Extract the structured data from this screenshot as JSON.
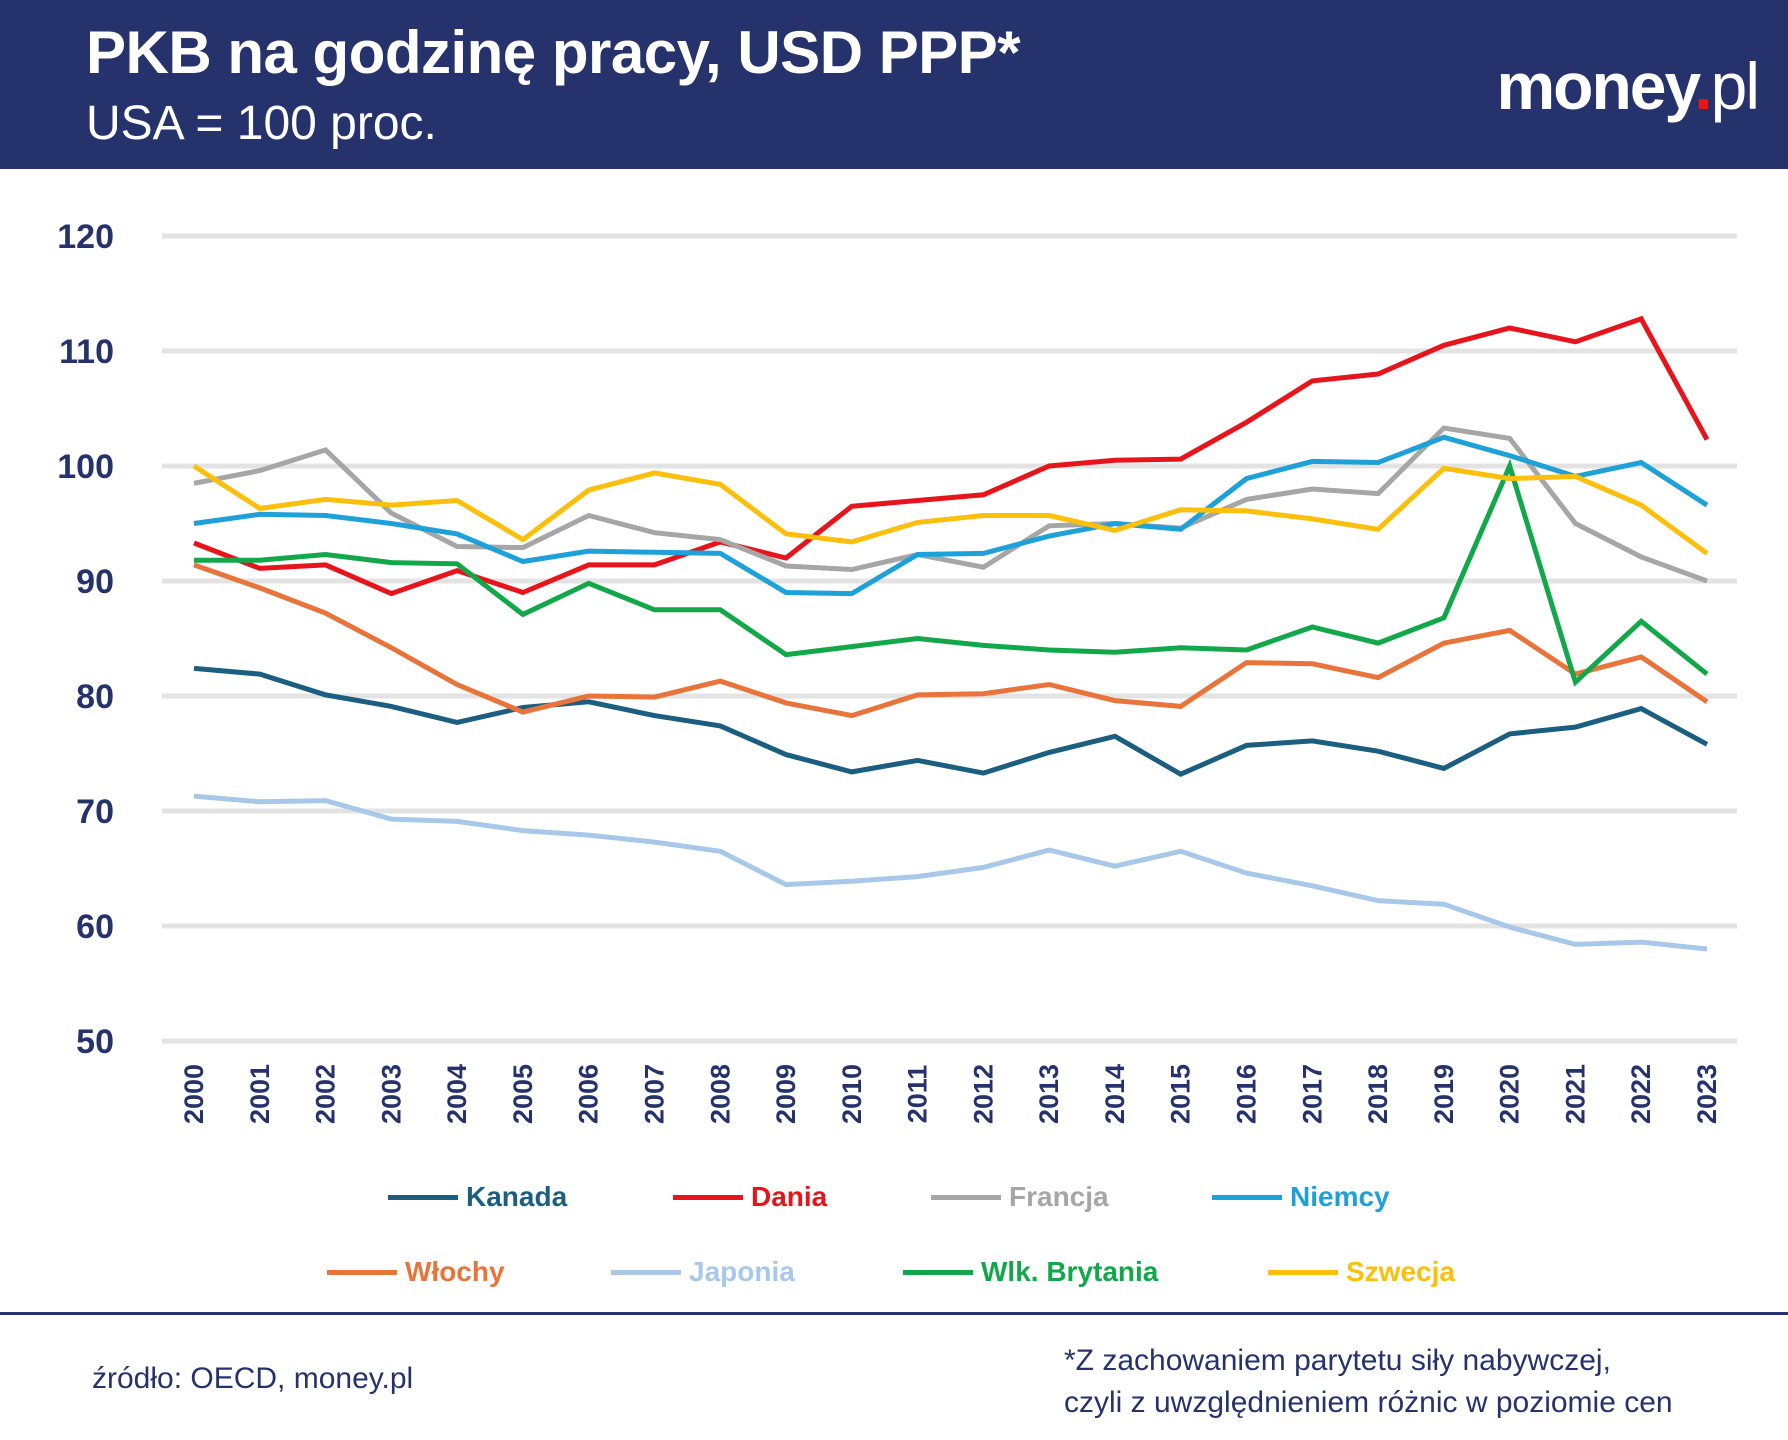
{
  "header": {
    "title": "PKB na godzinę pracy, USD PPP*",
    "subtitle": "USA = 100 proc.",
    "logo": "money.pl"
  },
  "chart_data": {
    "type": "line",
    "title": "PKB na godzinę pracy, USD PPP*",
    "subtitle": "USA = 100 proc.",
    "x": [
      "2000",
      "2001",
      "2002",
      "2003",
      "2004",
      "2005",
      "2006",
      "2007",
      "2008",
      "2009",
      "2010",
      "2011",
      "2012",
      "2013",
      "2014",
      "2015",
      "2016",
      "2017",
      "2018",
      "2019",
      "2020",
      "2021",
      "2022",
      "2023"
    ],
    "ylim": [
      50,
      120
    ],
    "yticks": [
      50,
      60,
      70,
      80,
      90,
      100,
      110,
      120
    ],
    "grid": "horizontal",
    "legend_position": "bottom",
    "series": [
      {
        "name": "Kanada",
        "color": "#1b5e80",
        "values": [
          82.4,
          81.9,
          80.1,
          79.1,
          77.7,
          79.0,
          79.5,
          78.3,
          77.4,
          74.9,
          73.4,
          74.4,
          73.3,
          75.1,
          76.5,
          73.2,
          75.7,
          76.1,
          75.2,
          73.7,
          76.7,
          77.3,
          78.9,
          75.8
        ]
      },
      {
        "name": "Dania",
        "color": "#e8141c",
        "values": [
          93.3,
          91.1,
          91.4,
          88.9,
          90.9,
          89.0,
          91.4,
          91.4,
          93.4,
          92.0,
          96.5,
          97.0,
          97.5,
          100.0,
          100.5,
          100.6,
          103.8,
          107.4,
          108.0,
          110.5,
          112.0,
          110.8,
          112.8,
          102.3
        ]
      },
      {
        "name": "Francja",
        "color": "#a6a6a6",
        "values": [
          98.5,
          99.6,
          101.4,
          95.9,
          93.0,
          92.9,
          95.7,
          94.2,
          93.6,
          91.3,
          91.0,
          92.3,
          91.2,
          94.8,
          95.0,
          94.6,
          97.1,
          98.0,
          97.6,
          103.3,
          102.4,
          95.0,
          92.1,
          90.0
        ]
      },
      {
        "name": "Niemcy",
        "color": "#1ea0d8",
        "values": [
          95.0,
          95.8,
          95.7,
          95.0,
          94.1,
          91.7,
          92.6,
          92.5,
          92.4,
          89.0,
          88.9,
          92.3,
          92.4,
          93.9,
          95.0,
          94.5,
          98.9,
          100.4,
          100.3,
          102.5,
          100.9,
          99.1,
          100.3,
          96.6
        ]
      },
      {
        "name": "Włochy",
        "color": "#e8743b",
        "values": [
          91.4,
          89.4,
          87.2,
          84.2,
          81.0,
          78.6,
          80.0,
          79.9,
          81.3,
          79.4,
          78.3,
          80.1,
          80.2,
          81.0,
          79.6,
          79.1,
          82.9,
          82.8,
          81.6,
          84.6,
          85.7,
          81.9,
          83.4,
          79.5
        ]
      },
      {
        "name": "Japonia",
        "color": "#a8c8ea",
        "values": [
          71.3,
          70.8,
          70.9,
          69.3,
          69.1,
          68.3,
          67.9,
          67.3,
          66.5,
          63.6,
          63.9,
          64.3,
          65.1,
          66.6,
          65.2,
          66.5,
          64.6,
          63.5,
          62.2,
          61.9,
          59.9,
          58.4,
          58.6,
          58.0
        ]
      },
      {
        "name": "Wlk. Brytania",
        "color": "#12a84a",
        "values": [
          91.8,
          91.8,
          92.3,
          91.6,
          91.5,
          87.1,
          89.8,
          87.5,
          87.5,
          83.6,
          84.3,
          85.0,
          84.4,
          84.0,
          83.8,
          84.2,
          84.0,
          86.0,
          84.6,
          86.8,
          100.0,
          81.2,
          86.5,
          81.9
        ]
      },
      {
        "name": "Szwecja",
        "color": "#fbbf0c",
        "values": [
          100.0,
          96.3,
          97.1,
          96.6,
          97.0,
          93.6,
          97.9,
          99.4,
          98.4,
          94.1,
          93.4,
          95.1,
          95.7,
          95.7,
          94.4,
          96.2,
          96.1,
          95.4,
          94.5,
          99.8,
          98.9,
          99.1,
          96.6,
          92.4
        ]
      }
    ]
  },
  "colors": {
    "header_bg": "#26326b",
    "axis_text": "#26326b",
    "grid": "#e3e3e3"
  },
  "footer": {
    "source": "źródło: OECD, money.pl",
    "note_line1": "*Z zachowaniem parytetu siły nabywczej,",
    "note_line2": "czyli z uwzględnieniem różnic w poziomie cen"
  }
}
